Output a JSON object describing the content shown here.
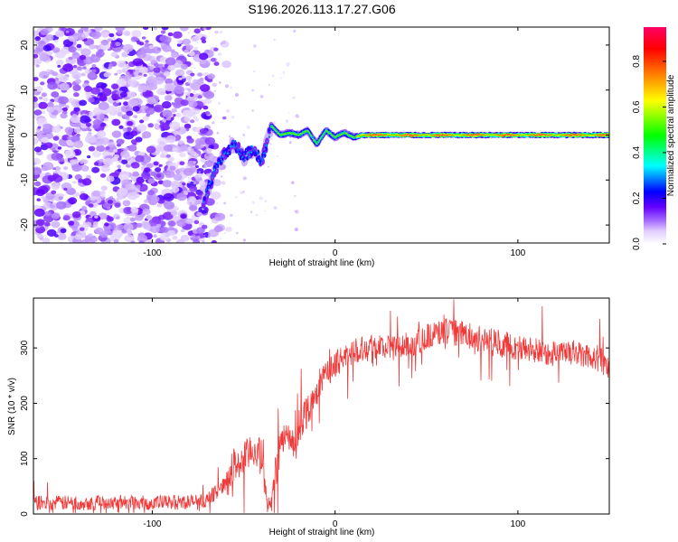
{
  "title": "S196.2026.113.17.27.G06",
  "colors": {
    "snr_line": "#f03a3a",
    "colormap": [
      "#ffffff",
      "#e0ccff",
      "#a066ff",
      "#6600ff",
      "#0000ff",
      "#00ffff",
      "#00ff00",
      "#ffff00",
      "#ff8000",
      "#ff0000",
      "#ff0066"
    ]
  },
  "chart_data": [
    {
      "type": "heatmap",
      "title": "S196.2026.113.17.27.G06",
      "xlabel": "Height of straight line (km)",
      "ylabel": "Frequency (Hz)",
      "xlim": [
        -165,
        150
      ],
      "ylim": [
        -24,
        24
      ],
      "xticks": [
        -100,
        0,
        100
      ],
      "xtick_labels": [
        "-100",
        "0",
        "100"
      ],
      "yticks": [
        -20,
        -10,
        0,
        10,
        20
      ],
      "ytick_labels": [
        "-20",
        "-10",
        "0",
        "10",
        "20"
      ],
      "grid": false,
      "colorbar": {
        "label": "Normalized spectral amplitude",
        "range": [
          0,
          0.95
        ],
        "ticks": [
          0.0,
          0.2,
          0.4,
          0.6,
          0.8
        ],
        "tick_labels": [
          "0.0",
          "0.2",
          "0.4",
          "0.6",
          "0.8"
        ]
      },
      "regions": [
        {
          "name": "noise",
          "x": [
            -165,
            -68
          ],
          "y": [
            -24,
            24
          ],
          "amplitude": [
            0.0,
            0.2
          ]
        },
        {
          "name": "scattered-points",
          "x": [
            -80,
            -20
          ],
          "y": [
            -24,
            24
          ],
          "amplitude": [
            0.0,
            0.08
          ]
        },
        {
          "name": "rising-segment",
          "x": [
            -72,
            -35
          ],
          "y": [
            -16,
            3
          ],
          "amplitude": [
            0.2,
            0.35
          ]
        },
        {
          "name": "wavy-segment",
          "x": [
            -35,
            12
          ],
          "y": [
            -2.5,
            2.5
          ],
          "amplitude": [
            0.3,
            0.65
          ]
        },
        {
          "name": "steady-carrier",
          "x": [
            12,
            150
          ],
          "y": [
            -1,
            1
          ],
          "amplitude": [
            0.6,
            0.95
          ]
        }
      ],
      "ridge": {
        "x": [
          -72,
          -65,
          -60,
          -55,
          -50,
          -45,
          -40,
          -35,
          -30,
          -25,
          -20,
          -15,
          -10,
          -5,
          0,
          5,
          10,
          15,
          50,
          100,
          150
        ],
        "y": [
          -15,
          -7,
          -4,
          -2,
          -5,
          -3,
          -6,
          2,
          0,
          0.5,
          0,
          1,
          -2,
          1,
          -0.5,
          0.5,
          -0.5,
          0,
          0,
          0,
          0
        ]
      }
    },
    {
      "type": "line",
      "title": "",
      "xlabel": "Height of straight line (km)",
      "ylabel": "SNR (10 * v/v)",
      "xlim": [
        -165,
        150
      ],
      "ylim": [
        0,
        390
      ],
      "xticks": [
        -100,
        0,
        100
      ],
      "xtick_labels": [
        "-100",
        "0",
        "100"
      ],
      "yticks": [
        0,
        100,
        200,
        300
      ],
      "ytick_labels": [
        "0",
        "100",
        "200",
        "300"
      ],
      "grid": false,
      "series": [
        {
          "name": "SNR",
          "x": [
            -165,
            -140,
            -120,
            -100,
            -80,
            -70,
            -60,
            -55,
            -50,
            -45,
            -40,
            -37,
            -35,
            -32,
            -28,
            -25,
            -22,
            -20,
            -15,
            -10,
            -5,
            0,
            5,
            10,
            20,
            30,
            40,
            50,
            60,
            70,
            80,
            90,
            100,
            110,
            120,
            130,
            140,
            145,
            150
          ],
          "values": [
            20,
            20,
            22,
            20,
            22,
            25,
            55,
            90,
            95,
            120,
            100,
            15,
            25,
            90,
            150,
            130,
            110,
            160,
            190,
            220,
            255,
            270,
            285,
            295,
            305,
            300,
            305,
            320,
            330,
            325,
            315,
            310,
            300,
            295,
            290,
            290,
            285,
            280,
            265
          ],
          "noise_amplitude": 15
        }
      ]
    }
  ]
}
